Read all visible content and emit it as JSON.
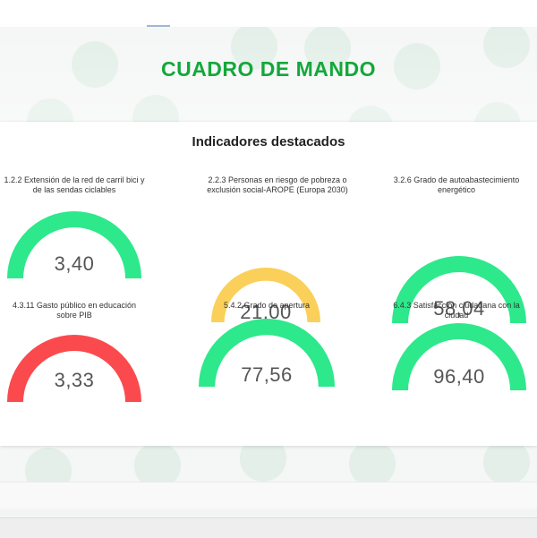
{
  "dashboard": {
    "title": "CUADRO DE MANDO"
  },
  "card": {
    "title": "Indicadores destacados"
  },
  "gauges": [
    {
      "label": "1.2.2 Extensión de la red de carril bici y de las sendas ciclables",
      "value": "3,40",
      "color": "#2ee88c"
    },
    {
      "label": "2.2.3 Personas en riesgo de pobreza o exclusión social-AROPE (Europa 2030)",
      "value": "21,00",
      "color": "#fad05a"
    },
    {
      "label": "3.2.6 Grado de autoabastecimiento energético",
      "value": "58,04",
      "color": "#2ee88c"
    },
    {
      "label": "4.3.11 Gasto público en educación sobre PIB",
      "value": "3,33",
      "color": "#fb4a4e"
    },
    {
      "label": "5.4.2 Grado de apertura",
      "value": "77,56",
      "color": "#2ee88c"
    },
    {
      "label": "6.4.3 Satisfacción ciudadana con la ciudad",
      "value": "96,40",
      "color": "#2ee88c"
    }
  ],
  "colors": {
    "brand_green": "#13a83a",
    "good": "#2ee88c",
    "warning": "#fad05a",
    "bad": "#fb4a4e"
  }
}
